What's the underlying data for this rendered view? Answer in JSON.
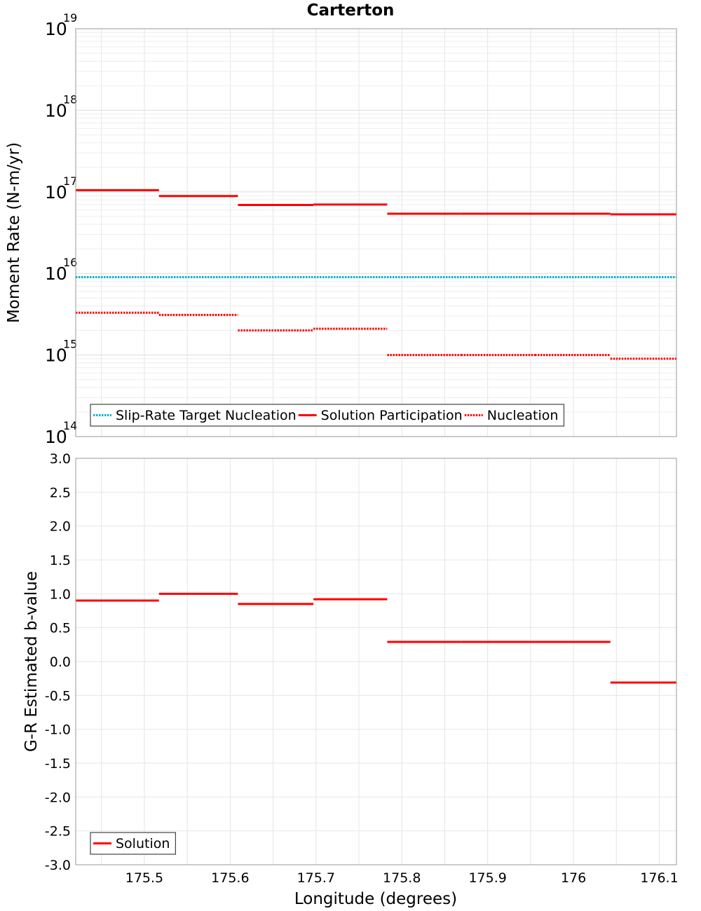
{
  "chart_data": {
    "title": "Carterton",
    "xlabel": "Longitude (degrees)",
    "x_range": [
      175.42,
      176.12
    ],
    "x_ticks": [
      175.5,
      175.6,
      175.7,
      175.8,
      175.9,
      176,
      176.1
    ],
    "x_tick_labels": [
      "175.5",
      "175.6",
      "175.7",
      "175.8",
      "175.9",
      "176",
      "176.1"
    ],
    "grid": true,
    "panels": [
      {
        "type": "line",
        "step": true,
        "ylabel": "Moment Rate (N-m/yr)",
        "y_scale": "log",
        "ylim": [
          100000000000000.0,
          1e+19
        ],
        "y_ticks": [
          {
            "base": "10",
            "exp": "14",
            "value": 100000000000000.0
          },
          {
            "base": "10",
            "exp": "15",
            "value": 1000000000000000.0
          },
          {
            "base": "10",
            "exp": "16",
            "value": 1e+16
          },
          {
            "base": "10",
            "exp": "17",
            "value": 1e+17
          },
          {
            "base": "10",
            "exp": "18",
            "value": 1e+18
          },
          {
            "base": "10",
            "exp": "19",
            "value": 1e+19
          }
        ],
        "legend_position": "bottom-left",
        "series": [
          {
            "name": "Slip-Rate Target Nucleation",
            "color": "#00b4c8",
            "style": "dotted",
            "segments": [
              [
                175.42,
                176.12,
                9000000000000000.0
              ]
            ]
          },
          {
            "name": "Solution Participation",
            "color": "#ff0000",
            "style": "solid",
            "segments": [
              [
                175.42,
                175.517,
                1.05e+17
              ],
              [
                175.517,
                175.609,
                8.9e+16
              ],
              [
                175.609,
                175.697,
                6.9e+16
              ],
              [
                175.697,
                175.783,
                7e+16
              ],
              [
                175.783,
                175.869,
                5.4e+16
              ],
              [
                175.869,
                175.955,
                5.4e+16
              ],
              [
                175.955,
                176.043,
                5.4e+16
              ],
              [
                176.043,
                176.12,
                5.3e+16
              ]
            ]
          },
          {
            "name": "Nucleation",
            "color": "#ff0000",
            "style": "dotted",
            "segments": [
              [
                175.42,
                175.517,
                3300000000000000.0
              ],
              [
                175.517,
                175.609,
                3100000000000000.0
              ],
              [
                175.609,
                175.697,
                2000000000000000.0
              ],
              [
                175.697,
                175.783,
                2100000000000000.0
              ],
              [
                175.783,
                175.869,
                1000000000000000.0
              ],
              [
                175.869,
                175.955,
                1000000000000000.0
              ],
              [
                175.955,
                176.043,
                1000000000000000.0
              ],
              [
                176.043,
                176.12,
                900000000000000.0
              ]
            ]
          }
        ]
      },
      {
        "type": "line",
        "step": true,
        "ylabel": "G-R Estimated b-value",
        "y_scale": "linear",
        "ylim": [
          -3.0,
          3.0
        ],
        "y_ticks": [
          3.0,
          2.5,
          2.0,
          1.5,
          1.0,
          0.5,
          0.0,
          -0.5,
          -1.0,
          -1.5,
          -2.0,
          -2.5,
          -3.0
        ],
        "y_tick_labels": [
          "3.0",
          "2.5",
          "2.0",
          "1.5",
          "1.0",
          "0.5",
          "0.0",
          "-0.5",
          "-1.0",
          "-1.5",
          "-2.0",
          "-2.5",
          "-3.0"
        ],
        "legend_position": "bottom-left",
        "series": [
          {
            "name": "Solution",
            "color": "#ff0000",
            "style": "solid",
            "segments": [
              [
                175.42,
                175.517,
                0.9
              ],
              [
                175.517,
                175.609,
                1.0
              ],
              [
                175.609,
                175.697,
                0.85
              ],
              [
                175.697,
                175.783,
                0.92
              ],
              [
                175.783,
                175.869,
                0.29
              ],
              [
                175.869,
                175.955,
                0.29
              ],
              [
                175.955,
                176.043,
                0.29
              ],
              [
                176.043,
                176.12,
                -0.31
              ]
            ]
          }
        ]
      }
    ]
  }
}
